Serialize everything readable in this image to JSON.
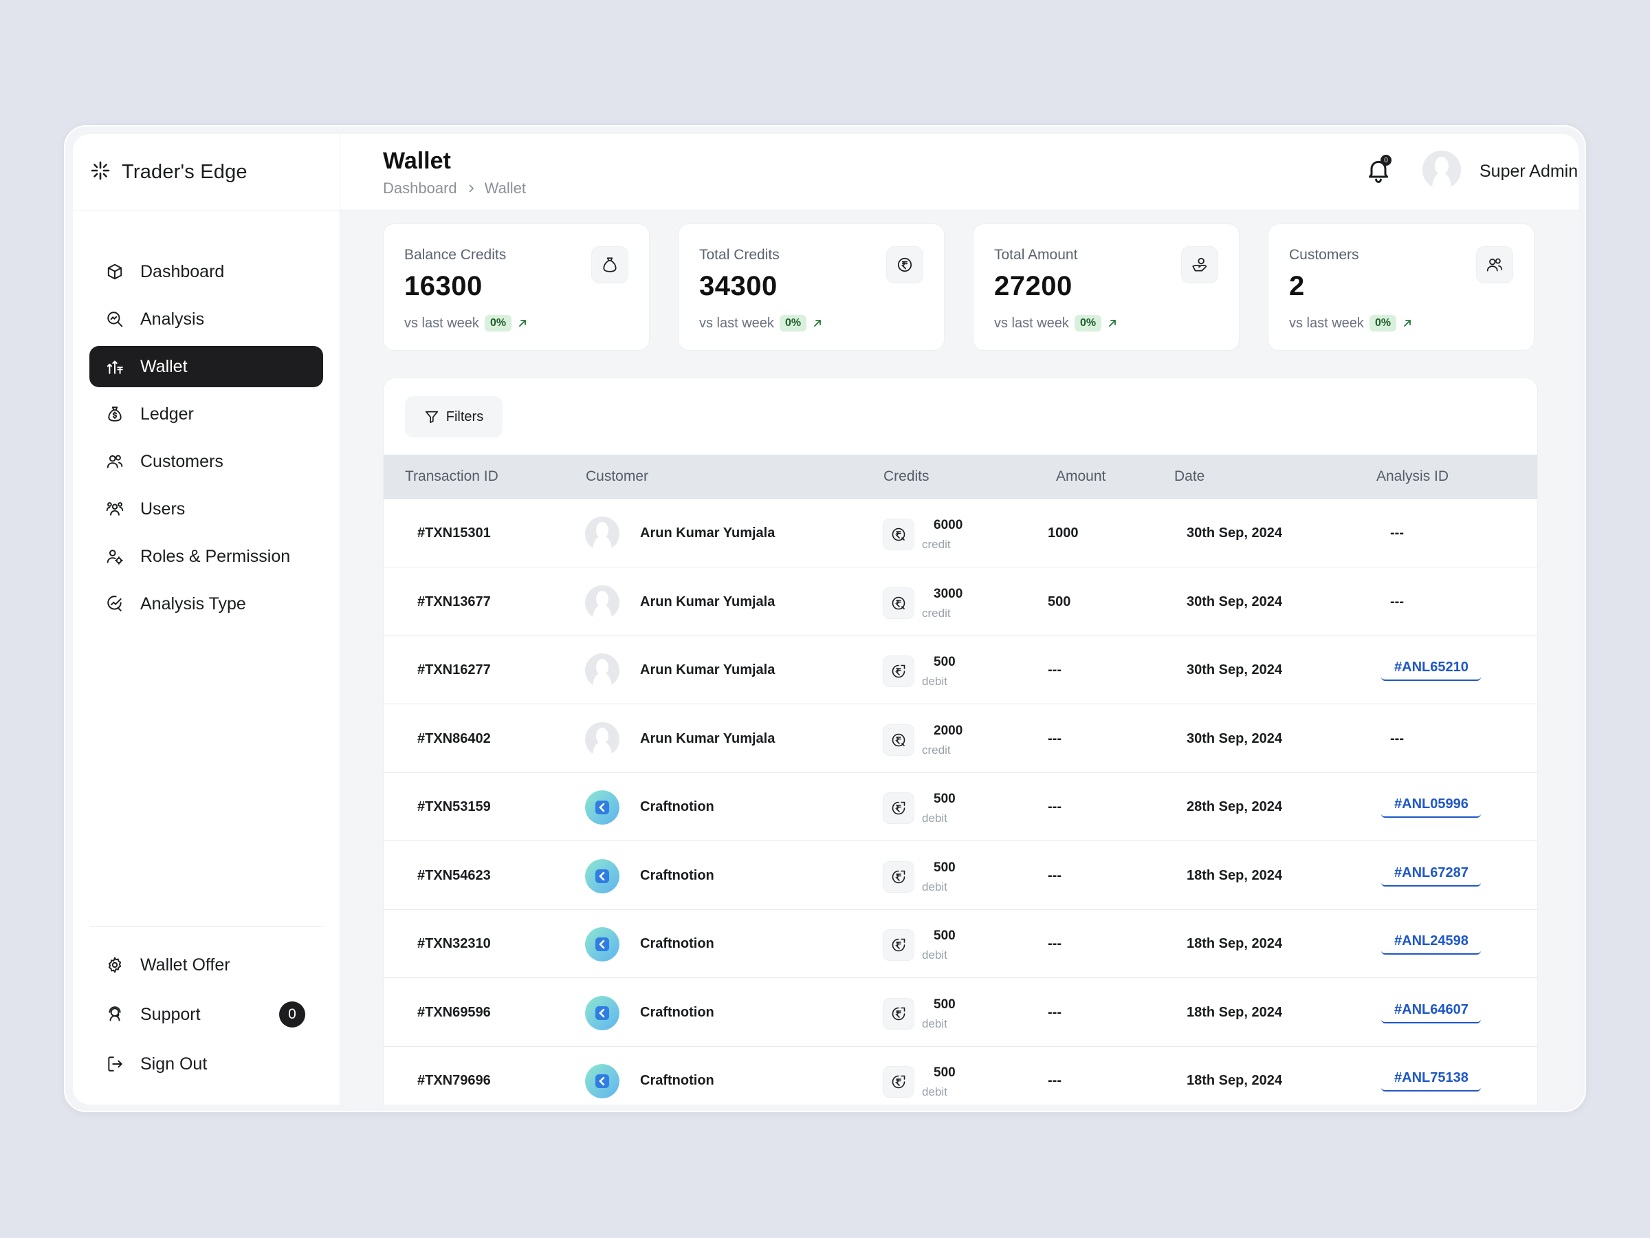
{
  "app": {
    "brand": "Trader's Edge"
  },
  "sidebar": {
    "items": [
      {
        "label": "Dashboard",
        "icon": "cube-icon"
      },
      {
        "label": "Analysis",
        "icon": "search-analysis-icon"
      },
      {
        "label": "Wallet",
        "icon": "wallet-icon",
        "active": true
      },
      {
        "label": "Ledger",
        "icon": "money-bag-icon"
      },
      {
        "label": "Customers",
        "icon": "customers-icon"
      },
      {
        "label": "Users",
        "icon": "users-icon"
      },
      {
        "label": "Roles & Permission",
        "icon": "roles-icon"
      },
      {
        "label": "Analysis Type",
        "icon": "analysis-type-icon"
      }
    ],
    "bottom": [
      {
        "label": "Wallet Offer",
        "icon": "gear-icon"
      },
      {
        "label": "Support",
        "icon": "support-icon",
        "badge": "0"
      },
      {
        "label": "Sign Out",
        "icon": "sign-out-icon"
      }
    ]
  },
  "header": {
    "title": "Wallet",
    "breadcrumb": [
      "Dashboard",
      "Wallet"
    ],
    "notification_count": "0",
    "user_name": "Super Admin"
  },
  "stats": [
    {
      "label": "Balance Credits",
      "value": "16300",
      "sub": "vs last week",
      "pct": "0%",
      "icon": "money-bag-icon"
    },
    {
      "label": "Total Credits",
      "value": "34300",
      "sub": "vs last week",
      "pct": "0%",
      "icon": "rupee-icon"
    },
    {
      "label": "Total Amount",
      "value": "27200",
      "sub": "vs last week",
      "pct": "0%",
      "icon": "hand-coin-icon"
    },
    {
      "label": "Customers",
      "value": "2",
      "sub": "vs last week",
      "pct": "0%",
      "icon": "customers-icon"
    }
  ],
  "table": {
    "filters_label": "Filters",
    "columns": [
      "Transaction ID",
      "Customer",
      "Credits",
      "Amount",
      "Date",
      "Analysis ID"
    ],
    "rows": [
      {
        "txn": "#TXN15301",
        "customer": "Arun Kumar Yumjala",
        "avatar": "person",
        "credits": "6000",
        "type": "credit",
        "amount": "1000",
        "date": "30th Sep, 2024",
        "analysis": "---"
      },
      {
        "txn": "#TXN13677",
        "customer": "Arun Kumar Yumjala",
        "avatar": "person",
        "credits": "3000",
        "type": "credit",
        "amount": "500",
        "date": "30th Sep, 2024",
        "analysis": "---"
      },
      {
        "txn": "#TXN16277",
        "customer": "Arun Kumar Yumjala",
        "avatar": "person",
        "credits": "500",
        "type": "debit",
        "amount": "---",
        "date": "30th Sep, 2024",
        "analysis": "#ANL65210"
      },
      {
        "txn": "#TXN86402",
        "customer": "Arun Kumar Yumjala",
        "avatar": "person",
        "credits": "2000",
        "type": "credit",
        "amount": "---",
        "date": "30th Sep, 2024",
        "analysis": "---"
      },
      {
        "txn": "#TXN53159",
        "customer": "Craftnotion",
        "avatar": "logo",
        "credits": "500",
        "type": "debit",
        "amount": "---",
        "date": "28th Sep, 2024",
        "analysis": "#ANL05996"
      },
      {
        "txn": "#TXN54623",
        "customer": "Craftnotion",
        "avatar": "logo",
        "credits": "500",
        "type": "debit",
        "amount": "---",
        "date": "18th Sep, 2024",
        "analysis": "#ANL67287"
      },
      {
        "txn": "#TXN32310",
        "customer": "Craftnotion",
        "avatar": "logo",
        "credits": "500",
        "type": "debit",
        "amount": "---",
        "date": "18th Sep, 2024",
        "analysis": "#ANL24598"
      },
      {
        "txn": "#TXN69596",
        "customer": "Craftnotion",
        "avatar": "logo",
        "credits": "500",
        "type": "debit",
        "amount": "---",
        "date": "18th Sep, 2024",
        "analysis": "#ANL64607"
      },
      {
        "txn": "#TXN79696",
        "customer": "Craftnotion",
        "avatar": "logo",
        "credits": "500",
        "type": "debit",
        "amount": "---",
        "date": "18th Sep, 2024",
        "analysis": "#ANL75138"
      }
    ]
  },
  "colors": {
    "active_nav": "#1d1d1f",
    "link": "#1e57c8",
    "pct_bg": "#d9f1dc",
    "pct_text": "#1f5e2c",
    "table_header": "#e3e7ec"
  }
}
